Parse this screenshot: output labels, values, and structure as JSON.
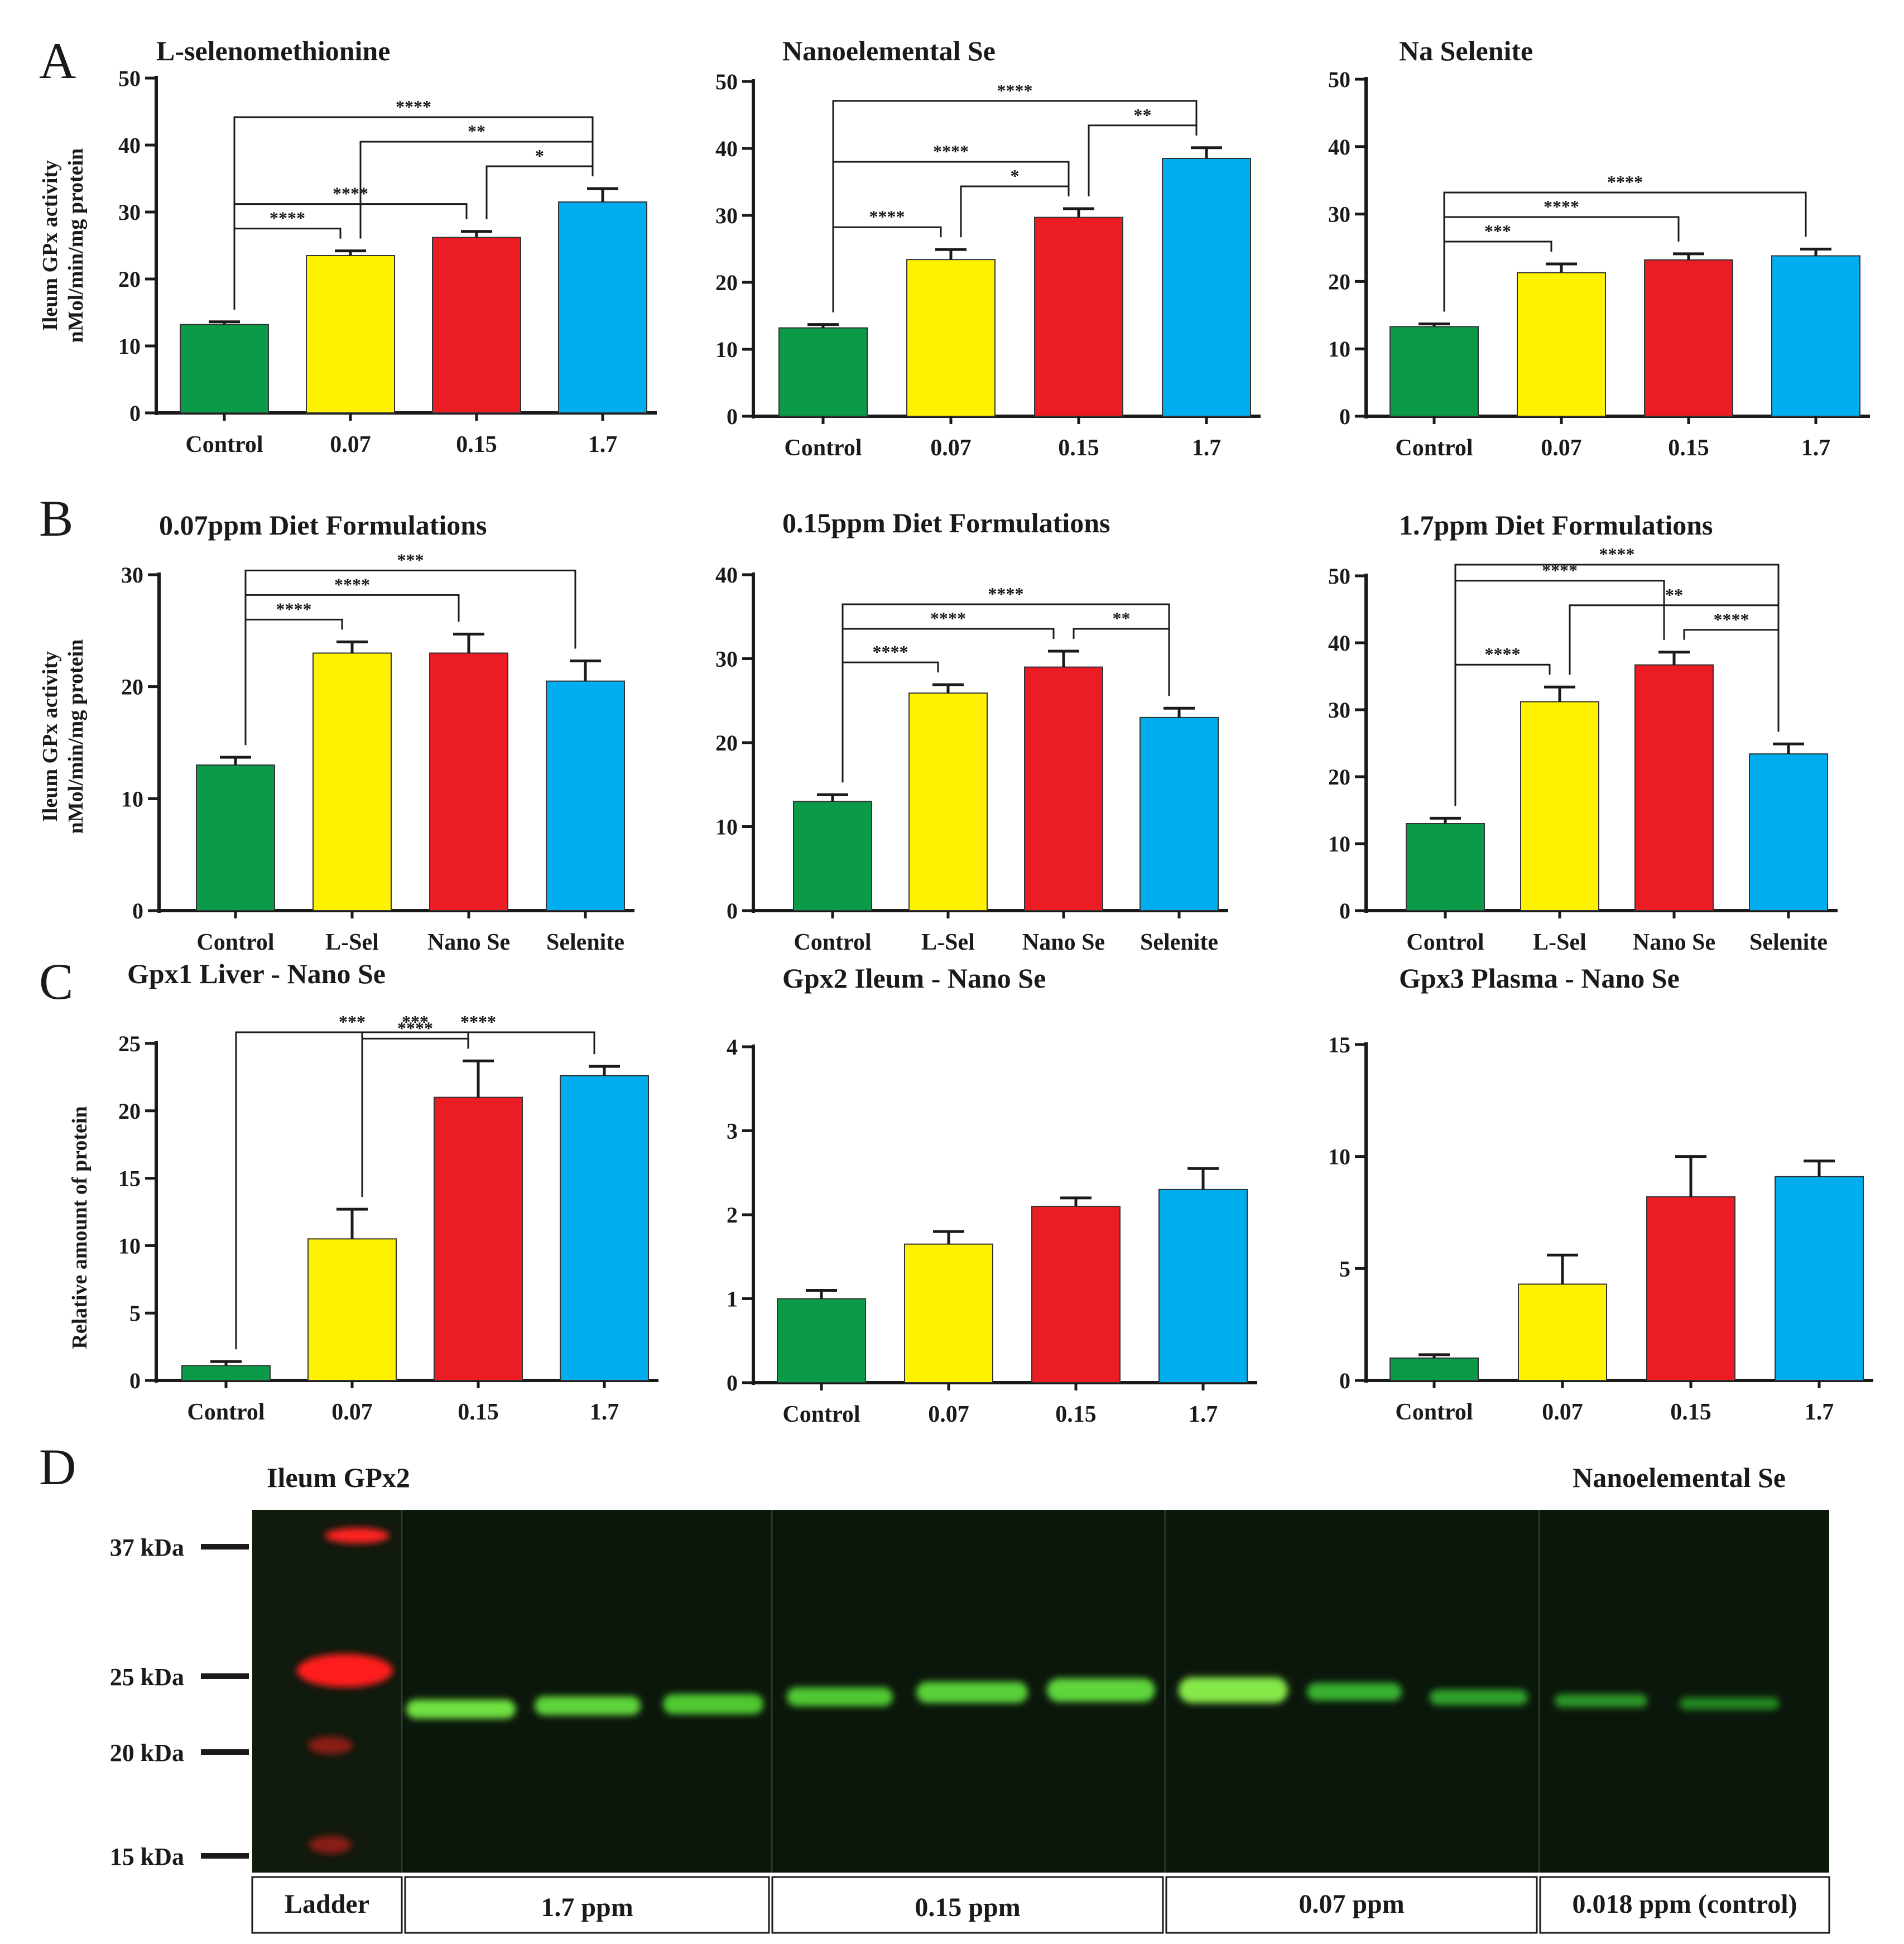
{
  "panel_labels": [
    "A",
    "B",
    "C",
    "D"
  ],
  "colors": {
    "green": "#0a9a48",
    "yellow": "#fff200",
    "red": "#ec1c24",
    "blue": "#00aeef",
    "axis": "#1a1a1a"
  },
  "y_axis_labels": {
    "activity_line1": "Ileum GPx activity",
    "activity_line2": "nMol/min/mg protein",
    "relative": "Relative amount of protein"
  },
  "chart_data": [
    {
      "type": "bar",
      "title": "L-selenomethionine",
      "categories": [
        "Control",
        "0.07",
        "0.15",
        "1.7"
      ],
      "values": [
        13.2,
        23.5,
        26.2,
        31.5
      ],
      "errors": [
        0.4,
        0.7,
        0.9,
        2.0
      ],
      "ylim": [
        0,
        50
      ],
      "yticks": [
        0,
        10,
        20,
        30,
        40,
        50
      ],
      "ylabel": "Ileum GPx activity nMol/min/mg protein",
      "significance": [
        {
          "from": 0,
          "to": 1,
          "label": "****"
        },
        {
          "from": 0,
          "to": 2,
          "label": "****"
        },
        {
          "from": 0,
          "to": 3,
          "label": "****"
        },
        {
          "from": 2,
          "to": 3,
          "label": "*"
        },
        {
          "from": 1,
          "to": 3,
          "label": "**"
        }
      ]
    },
    {
      "type": "bar",
      "title": "Nanoelemental Se",
      "categories": [
        "Control",
        "0.07",
        "0.15",
        "1.7"
      ],
      "values": [
        13.2,
        23.4,
        29.7,
        38.5
      ],
      "errors": [
        0.5,
        1.5,
        1.3,
        1.6
      ],
      "ylim": [
        0,
        50
      ],
      "yticks": [
        0,
        10,
        20,
        30,
        40,
        50
      ],
      "ylabel": "",
      "significance": [
        {
          "from": 0,
          "to": 1,
          "label": "****"
        },
        {
          "from": 1,
          "to": 2,
          "label": "*"
        },
        {
          "from": 0,
          "to": 2,
          "label": "****"
        },
        {
          "from": 2,
          "to": 3,
          "label": "**"
        },
        {
          "from": 0,
          "to": 3,
          "label": "****"
        }
      ]
    },
    {
      "type": "bar",
      "title": "Na Selenite",
      "categories": [
        "Control",
        "0.07",
        "0.15",
        "1.7"
      ],
      "values": [
        13.3,
        21.3,
        23.2,
        23.8
      ],
      "errors": [
        0.4,
        1.3,
        0.9,
        1.0
      ],
      "ylim": [
        0,
        50
      ],
      "yticks": [
        0,
        10,
        20,
        30,
        40,
        50
      ],
      "ylabel": "",
      "significance": [
        {
          "from": 0,
          "to": 1,
          "label": "***"
        },
        {
          "from": 0,
          "to": 2,
          "label": "****"
        },
        {
          "from": 0,
          "to": 3,
          "label": "****"
        }
      ]
    },
    {
      "type": "bar",
      "title": "0.07ppm Diet Formulations",
      "categories": [
        "Control",
        "L-Sel",
        "Nano Se",
        "Selenite"
      ],
      "values": [
        13.0,
        23.0,
        23.0,
        20.5
      ],
      "errors": [
        0.7,
        1.0,
        1.7,
        1.8
      ],
      "ylim": [
        0,
        30
      ],
      "yticks": [
        0,
        10,
        20,
        30
      ],
      "ylabel": "Ileum GPx activity nMol/min/mg protein",
      "significance": [
        {
          "from": 0,
          "to": 1,
          "label": "****"
        },
        {
          "from": 0,
          "to": 2,
          "label": "****"
        },
        {
          "from": 0,
          "to": 3,
          "label": "***"
        }
      ]
    },
    {
      "type": "bar",
      "title": "0.15ppm Diet Formulations",
      "categories": [
        "Control",
        "L-Sel",
        "Nano Se",
        "Selenite"
      ],
      "values": [
        13.0,
        25.9,
        29.0,
        23.0
      ],
      "errors": [
        0.8,
        1.0,
        1.9,
        1.1
      ],
      "ylim": [
        0,
        40
      ],
      "yticks": [
        0,
        10,
        20,
        30,
        40
      ],
      "ylabel": "",
      "significance": [
        {
          "from": 0,
          "to": 1,
          "label": "****"
        },
        {
          "from": 0,
          "to": 2,
          "label": "****"
        },
        {
          "from": 2,
          "to": 3,
          "label": "**"
        },
        {
          "from": 0,
          "to": 3,
          "label": "****"
        }
      ]
    },
    {
      "type": "bar",
      "title": "1.7ppm Diet Formulations",
      "categories": [
        "Control",
        "L-Sel",
        "Nano Se",
        "Selenite"
      ],
      "values": [
        13.0,
        31.2,
        36.7,
        23.4
      ],
      "errors": [
        0.8,
        2.2,
        1.9,
        1.5
      ],
      "ylim": [
        0,
        50
      ],
      "yticks": [
        0,
        10,
        20,
        30,
        40,
        50
      ],
      "ylabel": "",
      "significance": [
        {
          "from": 0,
          "to": 1,
          "label": "****"
        },
        {
          "from": 1,
          "to": 3,
          "label": "**"
        },
        {
          "from": 0,
          "to": 2,
          "label": "****"
        },
        {
          "from": 2,
          "to": 3,
          "label": "****"
        },
        {
          "from": 0,
          "to": 3,
          "label": "****"
        }
      ]
    },
    {
      "type": "bar",
      "title": "Gpx1 Liver - Nano Se",
      "categories": [
        "Control",
        "0.07",
        "0.15",
        "1.7"
      ],
      "values": [
        1.1,
        10.5,
        21.0,
        22.6
      ],
      "errors": [
        0.3,
        2.2,
        2.7,
        0.7
      ],
      "ylim": [
        0,
        25
      ],
      "yticks": [
        0,
        5,
        10,
        15,
        20,
        25
      ],
      "ylabel": "Relative amount of protein",
      "significance": [
        {
          "from": 1,
          "to": 2,
          "label": "****"
        },
        {
          "from": 1,
          "to": 3,
          "label": "****"
        },
        {
          "from": 0,
          "to": 2,
          "label": "***"
        },
        {
          "from": 0,
          "to": 3,
          "label": "***"
        }
      ]
    },
    {
      "type": "bar",
      "title": "Gpx2 Ileum - Nano Se",
      "categories": [
        "Control",
        "0.07",
        "0.15",
        "1.7"
      ],
      "values": [
        1.0,
        1.65,
        2.1,
        2.3
      ],
      "errors": [
        0.1,
        0.15,
        0.1,
        0.25
      ],
      "ylim": [
        0,
        4
      ],
      "yticks": [
        0,
        1,
        2,
        3,
        4
      ],
      "ylabel": "",
      "significance": []
    },
    {
      "type": "bar",
      "title": "Gpx3 Plasma - Nano Se",
      "categories": [
        "Control",
        "0.07",
        "0.15",
        "1.7"
      ],
      "values": [
        1.0,
        4.3,
        8.2,
        9.1
      ],
      "errors": [
        0.15,
        1.3,
        1.8,
        0.7
      ],
      "ylim": [
        0,
        15
      ],
      "yticks": [
        0,
        5,
        10,
        15
      ],
      "ylabel": "",
      "significance": []
    }
  ],
  "blot": {
    "title": "Ileum GPx2",
    "right_title": "Nanoelemental Se",
    "markers": [
      "37 kDa",
      "25 kDa",
      "20 kDa",
      "15 kDa"
    ],
    "lanes": [
      "Ladder",
      "1.7 ppm",
      "0.15 ppm",
      "0.07 ppm",
      "0.018 ppm (control)"
    ]
  }
}
